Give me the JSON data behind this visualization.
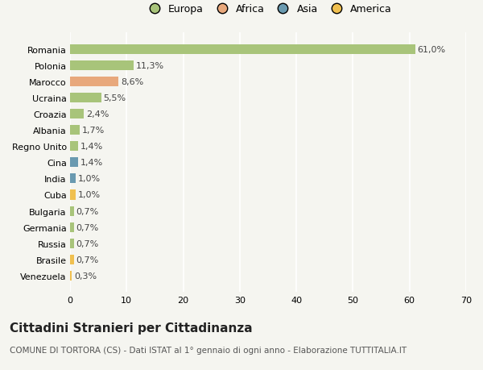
{
  "countries": [
    "Romania",
    "Polonia",
    "Marocco",
    "Ucraina",
    "Croazia",
    "Albania",
    "Regno Unito",
    "Cina",
    "India",
    "Cuba",
    "Bulgaria",
    "Germania",
    "Russia",
    "Brasile",
    "Venezuela"
  ],
  "values": [
    61.0,
    11.3,
    8.6,
    5.5,
    2.4,
    1.7,
    1.4,
    1.4,
    1.0,
    1.0,
    0.7,
    0.7,
    0.7,
    0.7,
    0.3
  ],
  "labels": [
    "61,0%",
    "11,3%",
    "8,6%",
    "5,5%",
    "2,4%",
    "1,7%",
    "1,4%",
    "1,4%",
    "1,0%",
    "1,0%",
    "0,7%",
    "0,7%",
    "0,7%",
    "0,7%",
    "0,3%"
  ],
  "colors": [
    "#a8c47a",
    "#a8c47a",
    "#e8a87c",
    "#a8c47a",
    "#a8c47a",
    "#a8c47a",
    "#a8c47a",
    "#6a9ab0",
    "#6a9ab0",
    "#f0c050",
    "#a8c47a",
    "#a8c47a",
    "#a8c47a",
    "#f0c050",
    "#f0c050"
  ],
  "legend_labels": [
    "Europa",
    "Africa",
    "Asia",
    "America"
  ],
  "legend_colors": [
    "#a8c47a",
    "#e8a87c",
    "#6a9ab0",
    "#f0c050"
  ],
  "xlim": [
    0,
    70
  ],
  "xticks": [
    0,
    10,
    20,
    30,
    40,
    50,
    60,
    70
  ],
  "title": "Cittadini Stranieri per Cittadinanza",
  "subtitle": "COMUNE DI TORTORA (CS) - Dati ISTAT al 1° gennaio di ogni anno - Elaborazione TUTTITALIA.IT",
  "bg_color": "#f5f5f0",
  "bar_height": 0.6,
  "grid_color": "#ffffff",
  "label_fontsize": 8,
  "tick_fontsize": 8,
  "title_fontsize": 11,
  "subtitle_fontsize": 7.5
}
